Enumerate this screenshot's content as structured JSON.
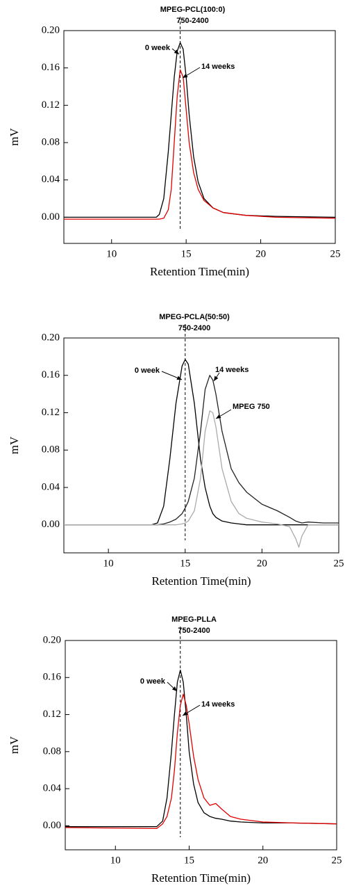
{
  "chart_data": [
    {
      "type": "line",
      "title": "MPEG-PCL(100:0)",
      "subtitle": "750-2400",
      "x_label": "Retention Time(min)",
      "y_label": "mV",
      "xlim": [
        6.8,
        25
      ],
      "ylim": [
        -0.028,
        0.2
      ],
      "xticks": [
        10,
        15,
        20,
        25
      ],
      "yticks": [
        {
          "value": 0,
          "label": "0.00"
        },
        {
          "value": 0.04,
          "label": "0.04"
        },
        {
          "value": 0.08,
          "label": "0.08"
        },
        {
          "value": 0.12,
          "label": "0.12"
        },
        {
          "value": 0.16,
          "label": "0.16"
        },
        {
          "value": 0.2,
          "label": "0.20"
        }
      ],
      "vline": 14.6,
      "x": [
        6.8,
        13,
        13.2,
        13.5,
        13.8,
        14.0,
        14.2,
        14.4,
        14.6,
        14.8,
        15.0,
        15.2,
        15.5,
        15.8,
        16.2,
        16.8,
        17.5,
        19,
        21,
        25
      ],
      "series": [
        {
          "name": "0 week",
          "color": "#000000",
          "values": [
            0,
            0,
            0.003,
            0.02,
            0.07,
            0.11,
            0.15,
            0.178,
            0.187,
            0.18,
            0.15,
            0.11,
            0.065,
            0.038,
            0.02,
            0.01,
            0.005,
            0.002,
            0.001,
            0
          ]
        },
        {
          "name": "14 weeks",
          "color": "#e00000",
          "values": [
            -0.002,
            -0.002,
            -0.002,
            -0.001,
            0.008,
            0.03,
            0.08,
            0.13,
            0.158,
            0.15,
            0.115,
            0.08,
            0.048,
            0.03,
            0.018,
            0.01,
            0.005,
            0.002,
            0,
            -0.001
          ]
        }
      ]
    },
    {
      "type": "line",
      "title": "MPEG-PCLA(50:50)",
      "subtitle": "750-2400",
      "x_label": "Retention Time(min)",
      "y_label": "mV",
      "xlim": [
        7.1,
        25
      ],
      "ylim": [
        -0.03,
        0.2
      ],
      "xticks": [
        10,
        15,
        20,
        25
      ],
      "yticks": [
        {
          "value": 0,
          "label": "0.00"
        },
        {
          "value": 0.04,
          "label": "0.04"
        },
        {
          "value": 0.08,
          "label": "0.08"
        },
        {
          "value": 0.12,
          "label": "0.12"
        },
        {
          "value": 0.16,
          "label": "0.16"
        },
        {
          "value": 0.2,
          "label": "0.20"
        }
      ],
      "vline": 15.0,
      "x": [
        7.1,
        12.8,
        13.2,
        13.6,
        14.0,
        14.4,
        14.8,
        15.0,
        15.2,
        15.6,
        16.0,
        16.3,
        16.6,
        16.8,
        17.0,
        17.4,
        18.0,
        18.5,
        19.0,
        20.0,
        21.0,
        21.8,
        22.2,
        22.4,
        22.6,
        23.0,
        24.0,
        25
      ],
      "series": [
        {
          "name": "0 week",
          "color": "#000000",
          "values": [
            0,
            0,
            0.002,
            0.02,
            0.07,
            0.13,
            0.17,
            0.177,
            0.172,
            0.13,
            0.07,
            0.04,
            0.02,
            0.012,
            0.008,
            0.004,
            0.002,
            0.001,
            0,
            0,
            0,
            0,
            0,
            0,
            0,
            0,
            0,
            0
          ]
        },
        {
          "name": "14 weeks",
          "color": "#222222",
          "values": [
            0,
            0,
            0,
            0.001,
            0.003,
            0.006,
            0.012,
            0.018,
            0.025,
            0.05,
            0.1,
            0.145,
            0.16,
            0.155,
            0.14,
            0.1,
            0.06,
            0.045,
            0.035,
            0.022,
            0.015,
            0.008,
            0.004,
            0.003,
            0.002,
            0.003,
            0.002,
            0.002
          ]
        },
        {
          "name": "MPEG 750",
          "color": "#aaaaaa",
          "values": [
            0,
            0,
            0,
            0,
            0,
            0,
            0.001,
            0.002,
            0.004,
            0.015,
            0.05,
            0.1,
            0.122,
            0.12,
            0.105,
            0.06,
            0.025,
            0.012,
            0.007,
            0.003,
            0.001,
            -0.002,
            -0.015,
            -0.024,
            -0.012,
            0,
            0,
            0
          ]
        }
      ]
    },
    {
      "type": "line",
      "title": "MPEG-PLLA",
      "subtitle": "750-2400",
      "x_label": "Retention Time(min)",
      "y_label": "mV",
      "xlim": [
        6.6,
        25
      ],
      "ylim": [
        -0.026,
        0.2
      ],
      "xticks": [
        10,
        15,
        20,
        25
      ],
      "yticks": [
        {
          "value": 0,
          "label": "0.00"
        },
        {
          "value": 0.04,
          "label": "0.04"
        },
        {
          "value": 0.08,
          "label": "0.08"
        },
        {
          "value": 0.12,
          "label": "0.12"
        },
        {
          "value": 0.16,
          "label": "0.16"
        },
        {
          "value": 0.2,
          "label": "0.20"
        }
      ],
      "vline": 14.4,
      "x": [
        6.6,
        12.8,
        13.2,
        13.5,
        13.8,
        14.0,
        14.2,
        14.4,
        14.6,
        14.8,
        15.0,
        15.3,
        15.6,
        16.0,
        16.4,
        16.8,
        17.2,
        17.8,
        18.5,
        20,
        22,
        25
      ],
      "series": [
        {
          "name": "0 week",
          "color": "#000000",
          "values": [
            -0.001,
            -0.001,
            0.005,
            0.03,
            0.08,
            0.12,
            0.155,
            0.168,
            0.155,
            0.12,
            0.08,
            0.045,
            0.025,
            0.014,
            0.01,
            0.008,
            0.007,
            0.005,
            0.004,
            0.003,
            0.003,
            0.002
          ]
        },
        {
          "name": "14 weeks",
          "color": "#e00000",
          "values": [
            -0.002,
            -0.003,
            0.002,
            0.01,
            0.03,
            0.06,
            0.1,
            0.13,
            0.142,
            0.13,
            0.11,
            0.075,
            0.05,
            0.03,
            0.022,
            0.024,
            0.018,
            0.01,
            0.007,
            0.004,
            0.003,
            0.002
          ]
        }
      ]
    }
  ]
}
